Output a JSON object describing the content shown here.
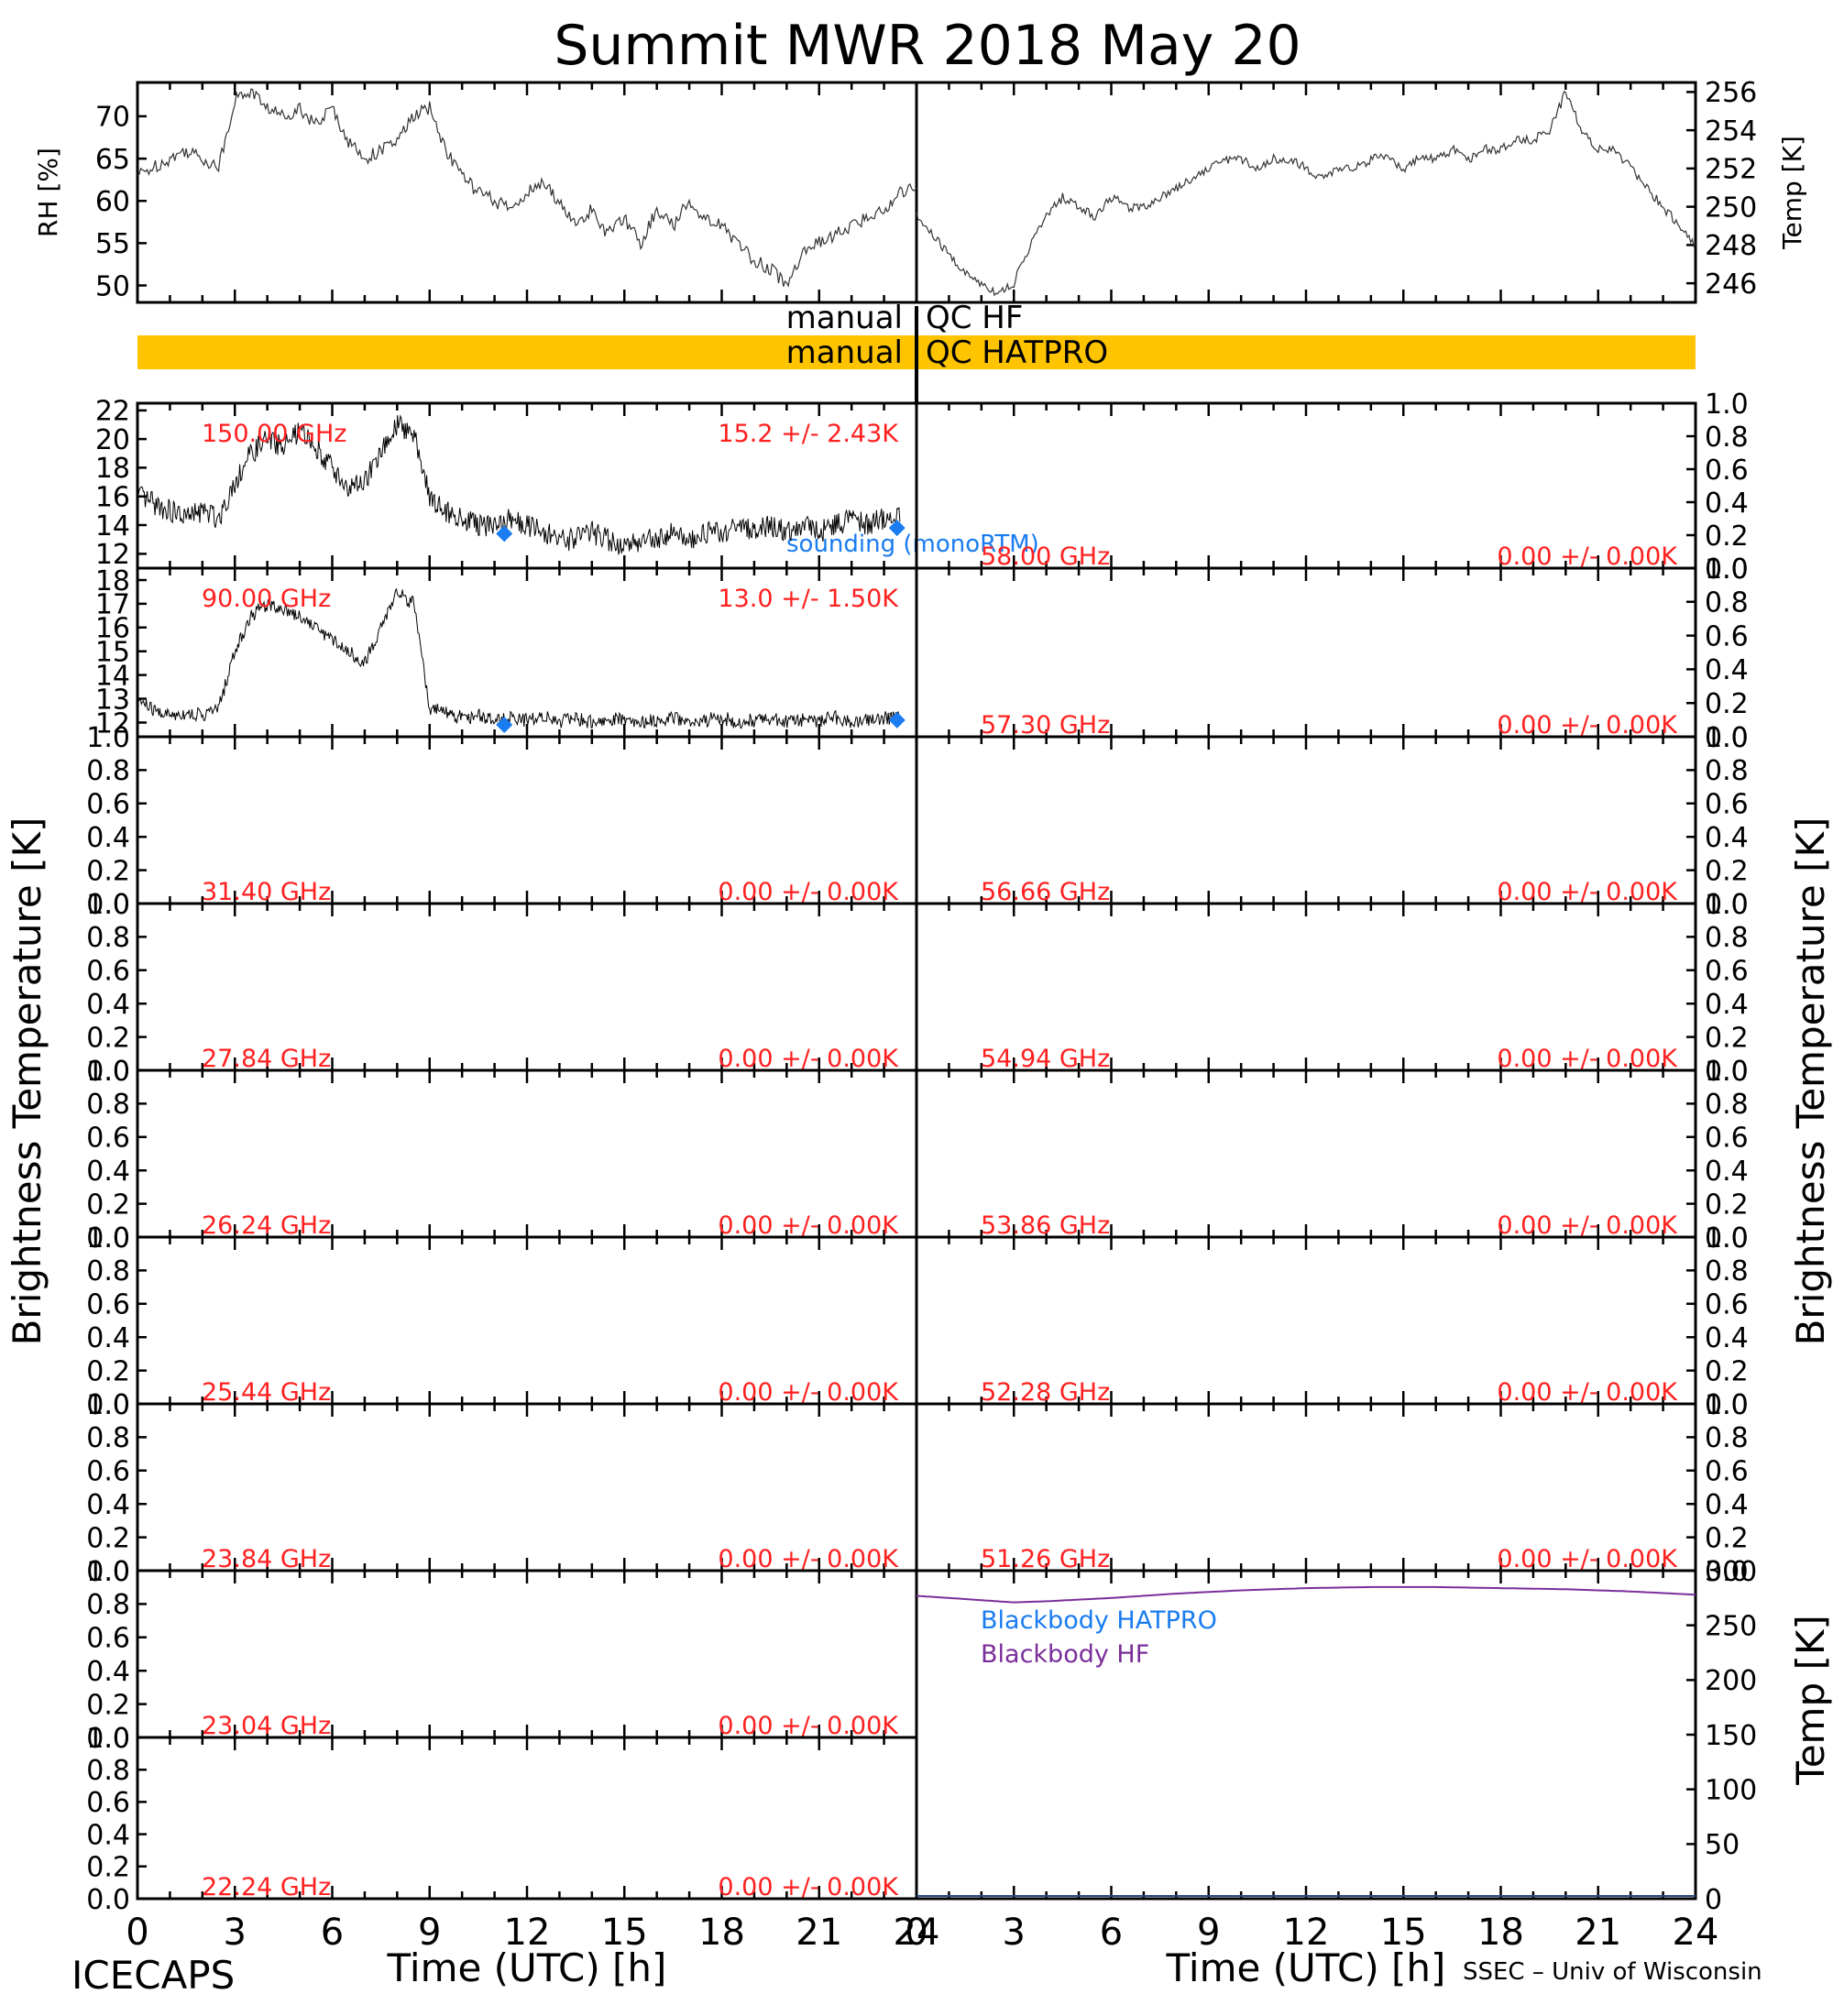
{
  "title": "Summit MWR 2018 May 20",
  "footer": {
    "left": "ICECAPS",
    "right": "SSEC – Univ of Wisconsin",
    "xlabel_left": "Time (UTC) [h]",
    "xlabel_right": "Time (UTC) [h]"
  },
  "side_labels": {
    "left": "Brightness Temperature [K]",
    "right": "Brightness Temperature [K]",
    "rh": "RH [%]",
    "temp": "Temp [K]",
    "bb_temp": "Temp [K]"
  },
  "qc": {
    "hf_left": "manual",
    "hf_right": "QC HF",
    "hatpro_left": "manual",
    "hatpro_right": "QC HATPRO"
  },
  "legend": {
    "sounding": "sounding (monoRTM)",
    "bb_hatpro": "Blackbody HATPRO",
    "bb_hf": "Blackbody HF"
  },
  "colors": {
    "channel_label": "#ff2020",
    "sounding": "#1a7cf0",
    "bb_hatpro": "#1a7cf0",
    "bb_hf": "#7a2e9a",
    "qc_bar": "#ffc400",
    "trace": "#000000"
  },
  "chart_data": [
    {
      "type": "line",
      "id": "rh",
      "ylabel": "RH [%]",
      "xlim": [
        0,
        24
      ],
      "ylim": [
        48,
        74
      ],
      "yticks": [
        50,
        55,
        60,
        65,
        70
      ],
      "x": [
        0,
        0.5,
        1,
        1.5,
        2,
        2.5,
        3,
        3.5,
        4,
        4.5,
        5,
        5.5,
        6,
        6.5,
        7,
        7.5,
        8,
        8.5,
        9,
        9.5,
        10,
        10.5,
        11,
        11.5,
        12,
        12.5,
        13,
        13.5,
        14,
        14.5,
        15,
        15.5,
        16,
        16.5,
        17,
        17.5,
        18,
        18.5,
        19,
        19.5,
        20,
        20.5,
        21,
        21.5,
        22,
        22.5,
        23,
        23.5,
        24
      ],
      "values": [
        63,
        64,
        65,
        66,
        65,
        64,
        72,
        73,
        71,
        70,
        71,
        69,
        71,
        67,
        65,
        66,
        67,
        70,
        71,
        66,
        63,
        61,
        60,
        59,
        61,
        62,
        60,
        57,
        59,
        56,
        58,
        55,
        59,
        57,
        60,
        58,
        57,
        55,
        53,
        52,
        50,
        54,
        55,
        56,
        57,
        58,
        59,
        61,
        62
      ]
    },
    {
      "type": "line",
      "id": "temp",
      "ylabel": "Temp [K]",
      "xlim": [
        0,
        24
      ],
      "ylim": [
        245,
        256.5
      ],
      "yticks": [
        246,
        248,
        250,
        252,
        254,
        256
      ],
      "x": [
        0,
        0.5,
        1,
        1.5,
        2,
        2.5,
        3,
        3.5,
        4,
        4.5,
        5,
        5.5,
        6,
        6.5,
        7,
        7.5,
        8,
        8.5,
        9,
        9.5,
        10,
        10.5,
        11,
        11.5,
        12,
        12.5,
        13,
        13.5,
        14,
        14.5,
        15,
        15.5,
        16,
        16.5,
        17,
        17.5,
        18,
        18.5,
        19,
        19.5,
        20,
        20.5,
        21,
        21.5,
        22,
        22.5,
        23,
        23.5,
        24
      ],
      "values": [
        249.5,
        248.5,
        247.5,
        246.5,
        246,
        245.5,
        246,
        248,
        249.5,
        250.5,
        250,
        249.5,
        250.5,
        250,
        250,
        250.5,
        251,
        251.5,
        252,
        252.5,
        252.5,
        252,
        252.5,
        252.5,
        252,
        251.5,
        252,
        252,
        252.5,
        252.5,
        252,
        252.5,
        252.5,
        253,
        252.5,
        253,
        253,
        253.5,
        253.5,
        254,
        256,
        254,
        253,
        253,
        252,
        251,
        250,
        249,
        248
      ]
    },
    {
      "type": "line",
      "id": "ch150",
      "channel": "150.00 GHz",
      "stat": "15.2 +/-  2.43K",
      "xlim": [
        0,
        24
      ],
      "ylim": [
        11,
        22.5
      ],
      "yticks": [
        12,
        14,
        16,
        18,
        20,
        22
      ],
      "x": [
        0,
        0.5,
        1,
        1.5,
        2,
        2.5,
        3,
        3.5,
        4,
        4.5,
        5,
        5.5,
        6,
        6.5,
        7,
        7.5,
        8,
        8.5,
        9,
        9.5,
        10,
        10.5,
        11,
        11.5,
        12,
        12.5,
        13,
        13.5,
        14,
        14.5,
        15,
        15.5,
        16,
        16.5,
        17,
        17.5,
        18,
        18.5,
        19,
        19.5,
        20,
        20.5,
        21,
        21.5,
        22,
        22.5,
        23,
        23.5
      ],
      "values": [
        16,
        15.5,
        15,
        14.5,
        15,
        14.5,
        17,
        19,
        20,
        19.5,
        20.5,
        19.5,
        18,
        16.5,
        17,
        19,
        21,
        20.5,
        16,
        15,
        14.5,
        14,
        14,
        14.5,
        14,
        13.5,
        13,
        13,
        13.5,
        13,
        12.5,
        13,
        13,
        13.5,
        13,
        13.5,
        13.5,
        14,
        13.5,
        14,
        13.5,
        14,
        13.5,
        14,
        14.5,
        14,
        14.5,
        14.5
      ],
      "sounding": {
        "x": [
          11.3,
          23.4
        ],
        "values": [
          13.4,
          13.8
        ]
      }
    },
    {
      "type": "line",
      "id": "ch90",
      "channel": "90.00 GHz",
      "stat": "13.0 +/-  1.50K",
      "xlim": [
        0,
        24
      ],
      "ylim": [
        11.4,
        18.5
      ],
      "yticks": [
        12,
        13,
        14,
        15,
        16,
        17,
        18
      ],
      "x": [
        0,
        0.5,
        1,
        1.5,
        2,
        2.5,
        3,
        3.5,
        4,
        4.5,
        5,
        5.5,
        6,
        6.5,
        7,
        7.5,
        8,
        8.5,
        9,
        9.5,
        10,
        10.5,
        11,
        11.5,
        12,
        12.5,
        13,
        13.5,
        14,
        14.5,
        15,
        15.5,
        16,
        16.5,
        17,
        17.5,
        18,
        18.5,
        19,
        19.5,
        20,
        20.5,
        21,
        21.5,
        22,
        22.5,
        23,
        23.5
      ],
      "values": [
        13,
        12.5,
        12.3,
        12.4,
        12.3,
        12.6,
        15,
        16.5,
        17,
        16.8,
        16.5,
        16,
        15.5,
        15,
        14.5,
        16,
        17.5,
        17,
        12.6,
        12.4,
        12.2,
        12.3,
        12.1,
        12.2,
        12.1,
        12.3,
        12,
        12.2,
        12,
        12.1,
        12.2,
        12,
        12.1,
        12.2,
        12,
        12.1,
        12.2,
        12,
        12.1,
        12.2,
        12,
        12.1,
        12.1,
        12.2,
        12,
        12.1,
        12.2,
        12.2
      ],
      "sounding": {
        "x": [
          11.3,
          23.4
        ],
        "values": [
          11.9,
          12.1
        ]
      }
    },
    {
      "type": "line",
      "id": "blackbody",
      "ylabel": "Temp [K]",
      "xlim": [
        0,
        24
      ],
      "ylim": [
        0,
        300
      ],
      "yticks": [
        0,
        50,
        100,
        150,
        200,
        250,
        300
      ],
      "series": [
        {
          "name": "Blackbody HF",
          "x": [
            0,
            2,
            3,
            4,
            6,
            8,
            10,
            12,
            14,
            16,
            18,
            20,
            22,
            24
          ],
          "values": [
            277,
            273,
            271,
            272,
            275,
            279,
            282,
            284,
            285,
            285,
            284,
            283,
            281,
            278
          ]
        },
        {
          "name": "Blackbody HATPRO",
          "x": [
            0,
            24
          ],
          "values": [
            0,
            0
          ]
        }
      ]
    }
  ],
  "empty_panels": {
    "left": [
      {
        "channel": "31.40 GHz",
        "stat": "0.00 +/-  0.00K"
      },
      {
        "channel": "27.84 GHz",
        "stat": "0.00 +/-  0.00K"
      },
      {
        "channel": "26.24 GHz",
        "stat": "0.00 +/-  0.00K"
      },
      {
        "channel": "25.44 GHz",
        "stat": "0.00 +/-  0.00K"
      },
      {
        "channel": "23.84 GHz",
        "stat": "0.00 +/-  0.00K"
      },
      {
        "channel": "23.04 GHz",
        "stat": "0.00 +/-  0.00K"
      },
      {
        "channel": "22.24 GHz",
        "stat": "0.00 +/-  0.00K"
      }
    ],
    "right": [
      {
        "channel": "58.00 GHz",
        "stat": "0.00 +/-  0.00K"
      },
      {
        "channel": "57.30 GHz",
        "stat": "0.00 +/-  0.00K"
      },
      {
        "channel": "56.66 GHz",
        "stat": "0.00 +/-  0.00K"
      },
      {
        "channel": "54.94 GHz",
        "stat": "0.00 +/-  0.00K"
      },
      {
        "channel": "53.86 GHz",
        "stat": "0.00 +/-  0.00K"
      },
      {
        "channel": "52.28 GHz",
        "stat": "0.00 +/-  0.00K"
      },
      {
        "channel": "51.26 GHz",
        "stat": "0.00 +/-  0.00K"
      }
    ],
    "yticks": [
      "0.0",
      "0.2",
      "0.4",
      "0.6",
      "0.8",
      "1.0"
    ]
  },
  "xticks": [
    "0",
    "3",
    "6",
    "9",
    "12",
    "15",
    "18",
    "21",
    "24"
  ]
}
